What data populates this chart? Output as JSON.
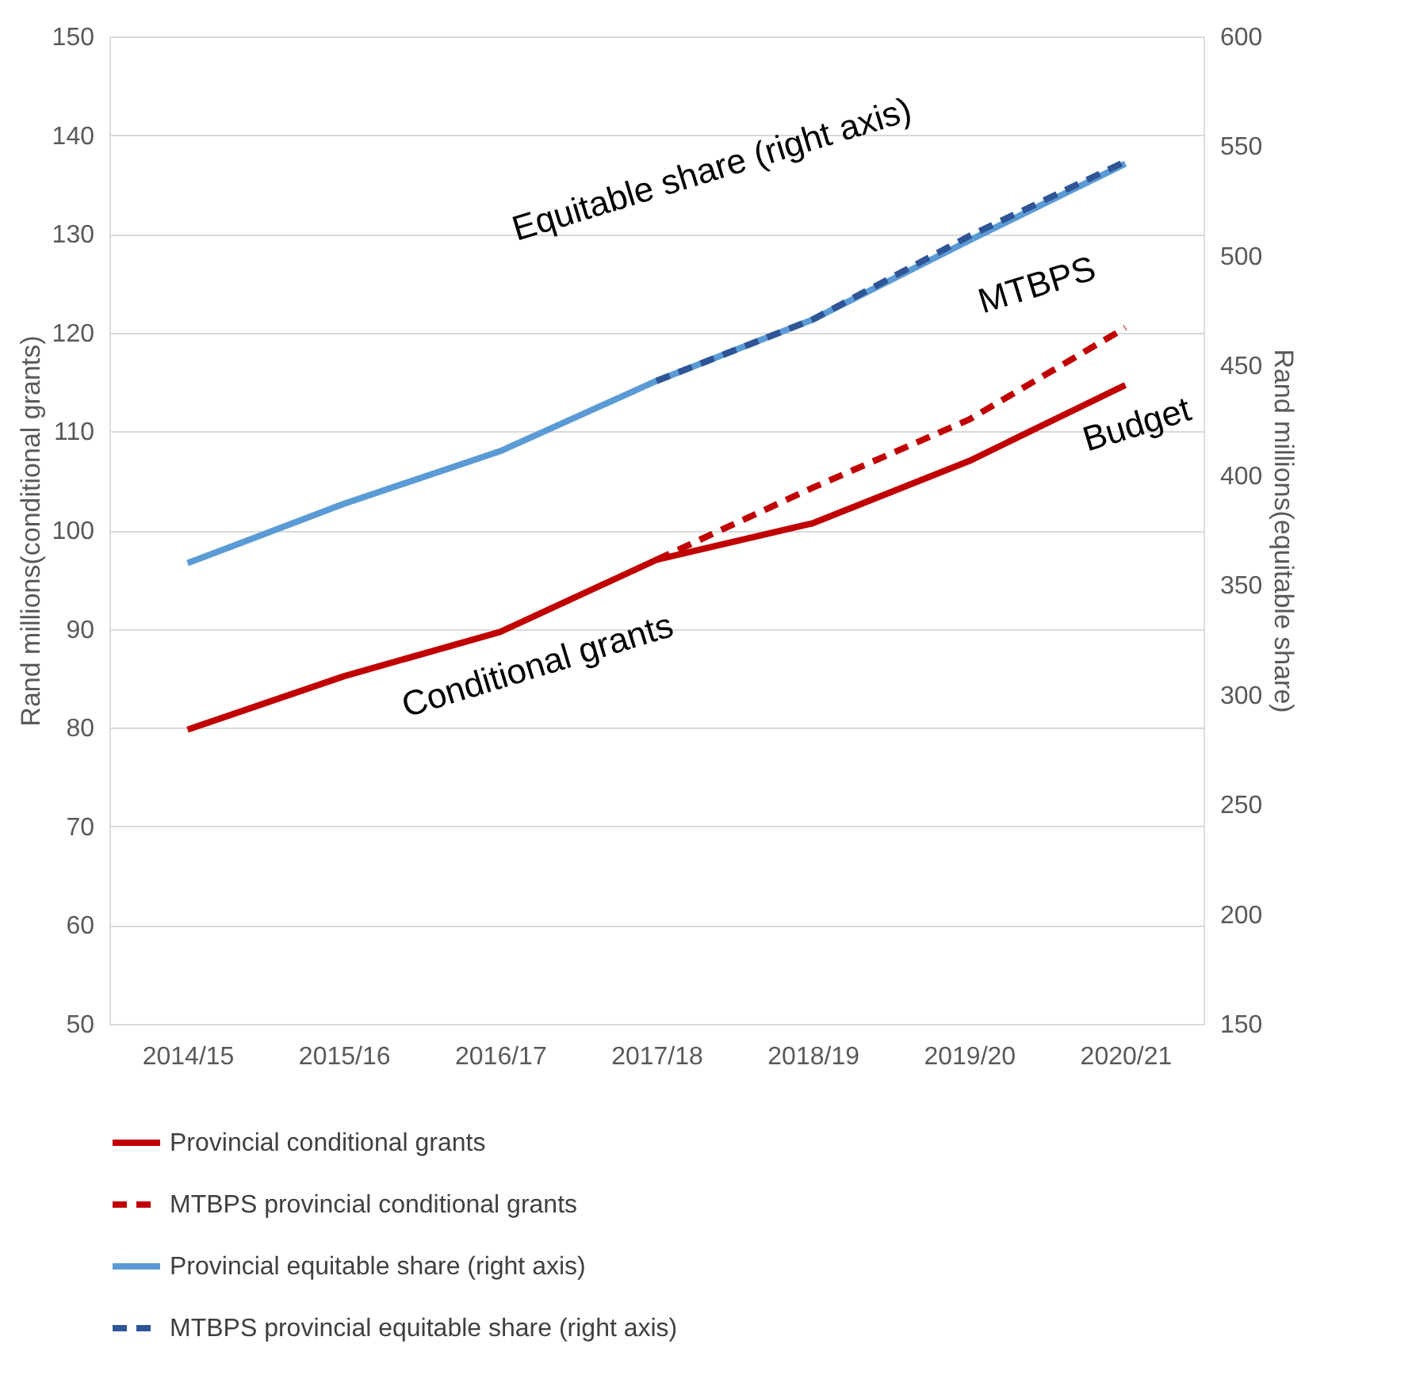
{
  "chart_data": {
    "type": "line",
    "categories": [
      "2014/15",
      "2015/16",
      "2016/17",
      "2017/18",
      "2018/19",
      "2019/20",
      "2020/21"
    ],
    "ylabel": "Rand millions(conditional grants)",
    "y2label": "Rand millions(equitable share)",
    "ylim": [
      50,
      150
    ],
    "yticks": [
      50,
      60,
      70,
      80,
      90,
      100,
      110,
      120,
      130,
      140,
      150
    ],
    "y2lim": [
      150,
      600
    ],
    "y2ticks": [
      150,
      200,
      250,
      300,
      350,
      400,
      450,
      500,
      550,
      600
    ],
    "grid": "y",
    "legend": "bottom",
    "annotations": [
      "Equitable share (right axis)",
      "MTBPS",
      "Budget",
      "Conditional grants"
    ],
    "series": [
      {
        "name": "Provincial conditional grants",
        "color": "#c00000",
        "line_style": "solid",
        "axis": "y",
        "values": [
          79.8,
          85.2,
          89.7,
          97,
          100.7,
          107,
          114.7
        ]
      },
      {
        "name": "MTBPS provincial conditional grants",
        "color": "#c00000",
        "line_style": "dashed",
        "axis": "y",
        "values": [
          null,
          null,
          null,
          97,
          104.3,
          111.2,
          120.5
        ]
      },
      {
        "name": "Provincial equitable share (right axis)",
        "color": "#5b9bd5",
        "line_style": "solid",
        "axis": "y2",
        "values": [
          360,
          387,
          411,
          443,
          471,
          507,
          542
        ]
      },
      {
        "name": "MTBPS provincial equitable share (right axis)",
        "color": "#2f5597",
        "line_style": "dashed",
        "axis": "y2",
        "values": [
          null,
          null,
          null,
          443,
          471,
          509,
          543
        ]
      }
    ]
  }
}
